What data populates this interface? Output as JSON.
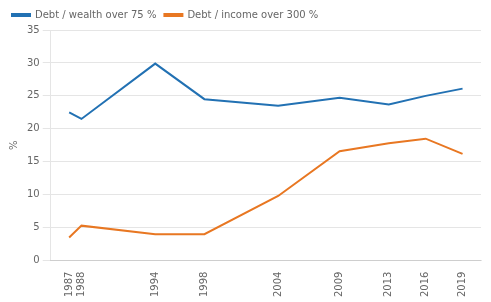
{
  "chart_data": {
    "type": "line",
    "x": [
      1987,
      1988,
      1994,
      1998,
      2004,
      2009,
      2013,
      2016,
      2019
    ],
    "series": [
      {
        "name": "Debt / wealth over 75 %",
        "color": "#2271b3",
        "values": [
          22.5,
          21.5,
          29.9,
          24.5,
          23.5,
          24.7,
          23.7,
          25.0,
          26.1
        ]
      },
      {
        "name": "Debt / income over 300 %",
        "color": "#e87722",
        "values": [
          3.5,
          5.3,
          4.0,
          4.0,
          9.8,
          16.6,
          17.8,
          18.5,
          16.2
        ]
      }
    ],
    "ylabel": "%",
    "xlim": [
      1985.5,
      2020.5
    ],
    "xticks": [
      1987,
      1988,
      1994,
      1998,
      2004,
      2009,
      2013,
      2016,
      2019
    ],
    "ylim": [
      0,
      35
    ],
    "yticks": [
      0,
      5,
      10,
      15,
      20,
      25,
      30,
      35
    ],
    "grid": "y",
    "legend": "upper left"
  }
}
